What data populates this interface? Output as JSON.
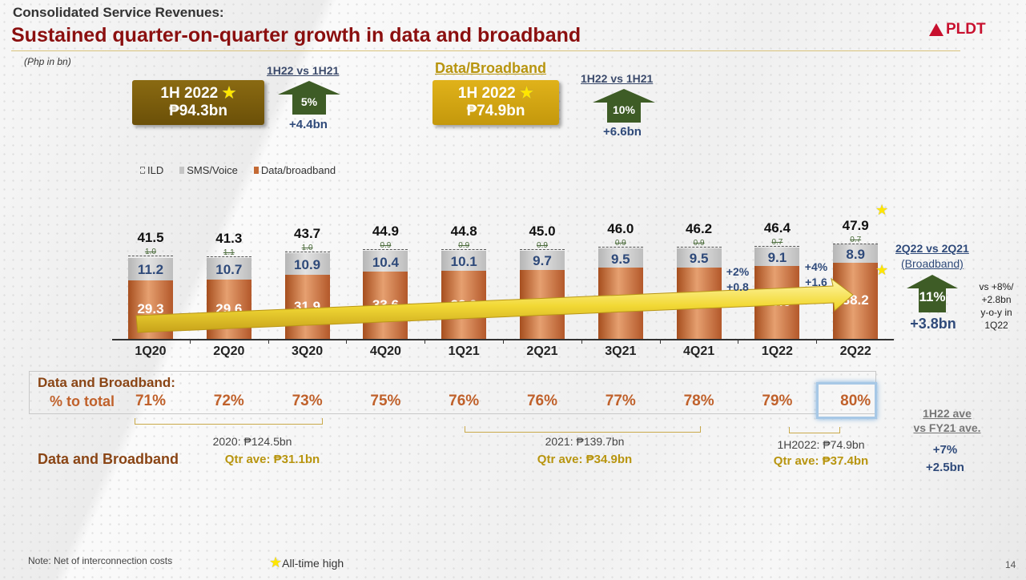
{
  "header": {
    "supertitle": "Consolidated Service Revenues:",
    "title": "Sustained quarter-on-quarter growth in data and broadband",
    "logo": "PLDT",
    "unit": "(Php in bn)"
  },
  "summary": {
    "total": {
      "period": "1H 2022",
      "value": "₱94.3bn",
      "compare_label": "1H22 vs 1H21",
      "growth": "5%",
      "delta": "+4.4bn"
    },
    "data": {
      "heading": "Data/Broadband",
      "period": "1H 2022",
      "value": "₱74.9bn",
      "compare_label": "1H22 vs 1H21",
      "growth": "10%",
      "delta": "+6.6bn"
    }
  },
  "colors": {
    "data": "#c46a35",
    "sms": "#c4c4c4",
    "ild": "#eeeeee",
    "arrow_green": "#3e5c26",
    "title_red": "#8b0f0f",
    "star": "#ffe600"
  },
  "chart_data": {
    "type": "bar",
    "stacked": true,
    "legend_position": "top-left",
    "categories": [
      "1Q20",
      "2Q20",
      "3Q20",
      "4Q20",
      "1Q21",
      "2Q21",
      "3Q21",
      "4Q21",
      "1Q22",
      "2Q22"
    ],
    "series": [
      {
        "name": "Data/broadband",
        "values": [
          29.3,
          29.6,
          31.9,
          33.6,
          33.9,
          34.4,
          35.6,
          35.8,
          36.6,
          38.2
        ]
      },
      {
        "name": "SMS/Voice",
        "values": [
          11.2,
          10.7,
          10.9,
          10.4,
          10.1,
          9.7,
          9.5,
          9.5,
          9.1,
          8.9
        ]
      },
      {
        "name": "ILD",
        "values": [
          1.0,
          1.1,
          1.0,
          0.9,
          0.9,
          0.9,
          0.9,
          0.9,
          0.7,
          0.7
        ]
      }
    ],
    "totals": [
      41.5,
      41.3,
      43.7,
      44.9,
      44.8,
      45.0,
      46.0,
      46.2,
      46.4,
      47.9
    ],
    "annotations": [
      {
        "between": "4Q21-1Q22",
        "pct": "+2%",
        "abs": "+0.8"
      },
      {
        "between": "1Q22-2Q22",
        "pct": "+4%",
        "abs": "+1.6"
      }
    ]
  },
  "broadband_compare": {
    "label": "2Q22 vs 2Q21",
    "sub": "(Broadband)",
    "growth": "11%",
    "delta": "+3.8bn",
    "note_lines": [
      "vs +8%/",
      "+2.8bn",
      "y-o-y in",
      "1Q22"
    ]
  },
  "share": {
    "heading": "Data and Broadband:",
    "row_label": "% to total",
    "values": [
      "71%",
      "72%",
      "73%",
      "75%",
      "76%",
      "76%",
      "77%",
      "78%",
      "79%",
      "80%"
    ]
  },
  "periods": [
    {
      "label": "2020: ₱124.5bn",
      "avg": "Qtr ave:  ₱31.1bn"
    },
    {
      "label": "2021: ₱139.7bn",
      "avg": "Qtr ave: ₱34.9bn"
    },
    {
      "label": "1H2022: ₱74.9bn",
      "avg": "Qtr ave: ₱37.4bn"
    }
  ],
  "bottom_label": "Data and Broadband",
  "ave_compare": {
    "label_line1": "1H22 ave",
    "label_line2": "vs FY21 ave.",
    "pct": "+7%",
    "delta": "+2.5bn"
  },
  "footer": {
    "note": "Note:  Net of interconnection costs",
    "star_legend": "All-time high",
    "page": "14"
  }
}
